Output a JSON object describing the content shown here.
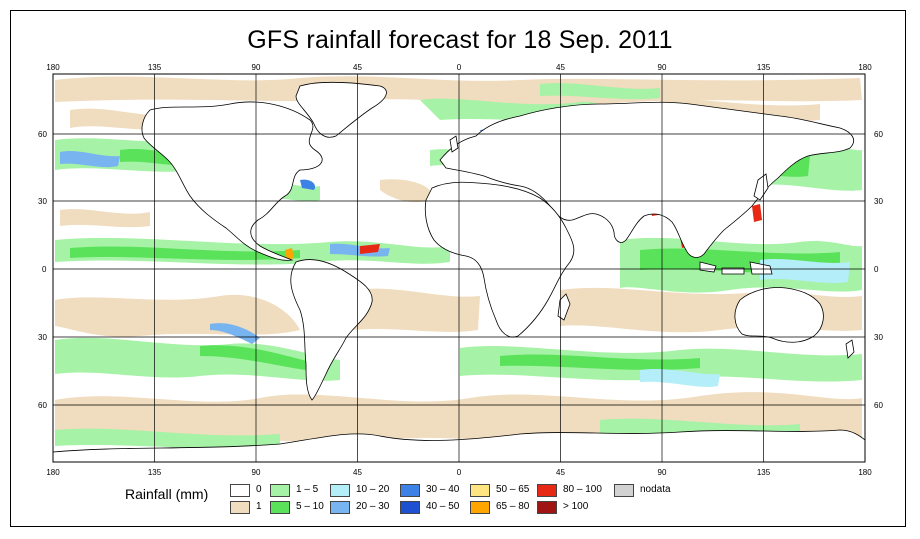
{
  "title": "GFS rainfall forecast for 18 Sep. 2011",
  "top_lon_ticks": [
    "180",
    "135",
    "90",
    "45",
    "0",
    "45",
    "90",
    "135",
    "180"
  ],
  "bottom_lon_ticks": [
    "180",
    "135",
    "90",
    "45",
    "0",
    "45",
    "90",
    "135",
    "180"
  ],
  "left_lat_ticks": [
    "60",
    "30",
    "0",
    "30",
    "60"
  ],
  "right_lat_ticks": [
    "60",
    "30",
    "0",
    "30",
    "60"
  ],
  "legend": {
    "title": "Rainfall (mm)",
    "classes": [
      {
        "label": "0",
        "color": "#ffffff"
      },
      {
        "label": "1",
        "color": "#f0dcbe"
      },
      {
        "label": "1 – 5",
        "color": "#a6f2a6"
      },
      {
        "label": "5 – 10",
        "color": "#5ae35a"
      },
      {
        "label": "10 – 20",
        "color": "#b4eef8"
      },
      {
        "label": "20 – 30",
        "color": "#78b4f0"
      },
      {
        "label": "30 – 40",
        "color": "#3c82e6"
      },
      {
        "label": "40 – 50",
        "color": "#1e50d2"
      },
      {
        "label": "50 – 65",
        "color": "#ffe682"
      },
      {
        "label": "65 – 80",
        "color": "#ffa500"
      },
      {
        "label": "80 – 100",
        "color": "#e62814"
      },
      {
        "label": "> 100",
        "color": "#a01414"
      },
      {
        "label": "nodata",
        "color": "#d2d2d2"
      }
    ]
  },
  "colors": {
    "ocean": "#ffffff",
    "land": "#ffffff",
    "coast": "#000000",
    "grid": "#000000"
  }
}
